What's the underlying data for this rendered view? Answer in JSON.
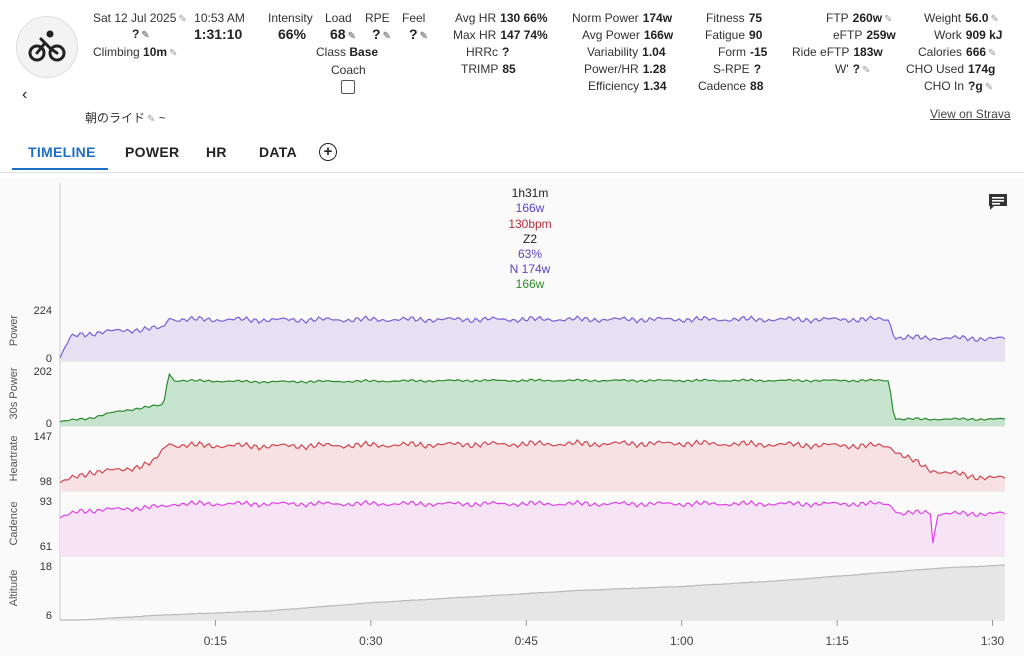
{
  "header": {
    "date": "Sat 12 Jul 2025",
    "time": "10:53 AM",
    "duration": "1:31:10",
    "question_mark": "?",
    "climbing_label": "Climbing",
    "climbing_value": "10m",
    "title": "朝のライド",
    "title_suffix": "~",
    "view_on_strava": "View on Strava"
  },
  "stats": {
    "intensity_label": "Intensity",
    "intensity_value": "66%",
    "load_label": "Load",
    "load_value": "68",
    "rpe_label": "RPE",
    "rpe_value": "?",
    "feel_label": "Feel",
    "feel_value": "?",
    "class_label": "Class",
    "class_value": "Base",
    "coach_label": "Coach",
    "avg_hr_label": "Avg HR",
    "avg_hr_value": "130 66%",
    "max_hr_label": "Max HR",
    "max_hr_value": "147 74%",
    "hrrc_label": "HRRc",
    "hrrc_value": "?",
    "trimp_label": "TRIMP",
    "trimp_value": "85",
    "norm_power_label": "Norm Power",
    "norm_power_value": "174w",
    "avg_power_label": "Avg Power",
    "avg_power_value": "166w",
    "variability_label": "Variability",
    "variability_value": "1.04",
    "power_hr_label": "Power/HR",
    "power_hr_value": "1.28",
    "efficiency_label": "Efficiency",
    "efficiency_value": "1.34",
    "fitness_label": "Fitness",
    "fitness_value": "75",
    "fatigue_label": "Fatigue",
    "fatigue_value": "90",
    "form_label": "Form",
    "form_value": "-15",
    "srpe_label": "S-RPE",
    "srpe_value": "?",
    "cadence_label": "Cadence",
    "cadence_value": "88",
    "ftp_label": "FTP",
    "ftp_value": "260w",
    "eftp_label": "eFTP",
    "eftp_value": "259w",
    "ride_eftp_label": "Ride eFTP",
    "ride_eftp_value": "183w",
    "wprime_label": "W'",
    "wprime_value": "?",
    "weight_label": "Weight",
    "weight_value": "56.0",
    "work_label": "Work",
    "work_value": "909 kJ",
    "calories_label": "Calories",
    "calories_value": "666",
    "cho_used_label": "CHO Used",
    "cho_used_value": "174g",
    "cho_in_label": "CHO In",
    "cho_in_value": "?g"
  },
  "tabs": [
    "TIMELINE",
    "POWER",
    "HR",
    "DATA"
  ],
  "summary": {
    "duration": "1h31m",
    "avg_power": "166w",
    "avg_hr": "130bpm",
    "zone": "Z2",
    "intensity": "63%",
    "norm_power": "N 174w",
    "power30": "166w"
  },
  "colors": {
    "power": "#7b5fd6",
    "power30": "#2e8b2e",
    "heartrate": "#d2454f",
    "cadence": "#e040e8",
    "altitude": "#c8c8c8",
    "accent": "#1e6fc8"
  },
  "chart_data": {
    "type": "line",
    "x_ticks": [
      "0:15",
      "0:30",
      "0:45",
      "1:00",
      "1:15",
      "1:30"
    ],
    "panels": [
      {
        "name": "Power",
        "ylim": [
          0,
          224
        ],
        "y_ticks": [
          "224",
          "0"
        ],
        "x_min": [
          0,
          1,
          2,
          5,
          10,
          10.5,
          11,
          20,
          40,
          60,
          80,
          80.5,
          81,
          91
        ],
        "values": [
          0,
          95,
          110,
          125,
          140,
          190,
          180,
          178,
          180,
          180,
          180,
          100,
          95,
          90
        ]
      },
      {
        "name": "30s Power",
        "ylim": [
          0,
          202
        ],
        "y_ticks": [
          "202",
          "0"
        ],
        "x_min": [
          0,
          3,
          5,
          8,
          10,
          10.5,
          11,
          20,
          40,
          60,
          80,
          80.5,
          81,
          91
        ],
        "values": [
          5,
          20,
          40,
          60,
          70,
          195,
          165,
          160,
          165,
          165,
          165,
          20,
          15,
          15
        ]
      },
      {
        "name": "Heartrate",
        "ylim": [
          98,
          147
        ],
        "y_ticks": [
          "147",
          "98"
        ],
        "x_min": [
          0,
          3,
          6,
          9,
          10.5,
          11,
          20,
          40,
          60,
          80,
          81,
          84,
          88,
          91
        ],
        "values": [
          96,
          108,
          110,
          118,
          140,
          137,
          136,
          138,
          139,
          136,
          128,
          110,
          103,
          101
        ]
      },
      {
        "name": "Cadence",
        "ylim": [
          61,
          93
        ],
        "y_ticks": [
          "93",
          "61"
        ],
        "x_min": [
          0,
          2,
          5,
          10,
          11,
          20,
          40,
          60,
          80,
          81,
          84,
          84.3,
          84.6,
          91
        ],
        "values": [
          81,
          86,
          87,
          89,
          91,
          91,
          91,
          91,
          91,
          84,
          85,
          58,
          84,
          84
        ]
      },
      {
        "name": "Altitude",
        "ylim": [
          6,
          18
        ],
        "y_ticks": [
          "18",
          "6"
        ],
        "x_min": [
          0,
          10,
          20,
          30,
          40,
          50,
          60,
          70,
          80,
          85,
          91
        ],
        "values": [
          4.5,
          6.0,
          7.0,
          9.0,
          10.5,
          12.0,
          13.0,
          14.5,
          16.5,
          17.5,
          18.2
        ]
      }
    ]
  }
}
